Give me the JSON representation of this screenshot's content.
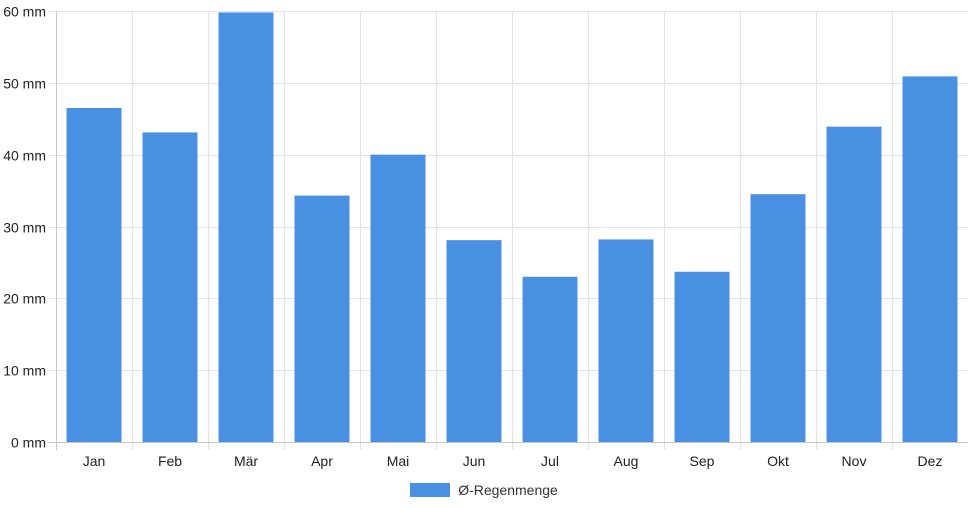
{
  "chart_data": {
    "type": "bar",
    "categories": [
      "Jan",
      "Feb",
      "Mär",
      "Apr",
      "Mai",
      "Jun",
      "Jul",
      "Aug",
      "Sep",
      "Okt",
      "Nov",
      "Dez"
    ],
    "series": [
      {
        "name": "Ø-Regenmenge",
        "values": [
          46.5,
          43.1,
          59.8,
          34.3,
          40.0,
          28.1,
          23.0,
          28.2,
          23.7,
          34.5,
          43.9,
          50.9
        ],
        "color": "#4a90e2"
      }
    ],
    "ylim": [
      0,
      60
    ],
    "y_ticks": [
      0,
      10,
      20,
      30,
      40,
      50,
      60
    ],
    "y_tick_labels": [
      "0 mm",
      "10 mm",
      "20 mm",
      "30 mm",
      "40 mm",
      "50 mm",
      "60 mm"
    ],
    "grid": true,
    "legend_position": "bottom-center"
  },
  "legend": {
    "label": "Ø-Regenmenge",
    "color": "#4a90e2"
  }
}
